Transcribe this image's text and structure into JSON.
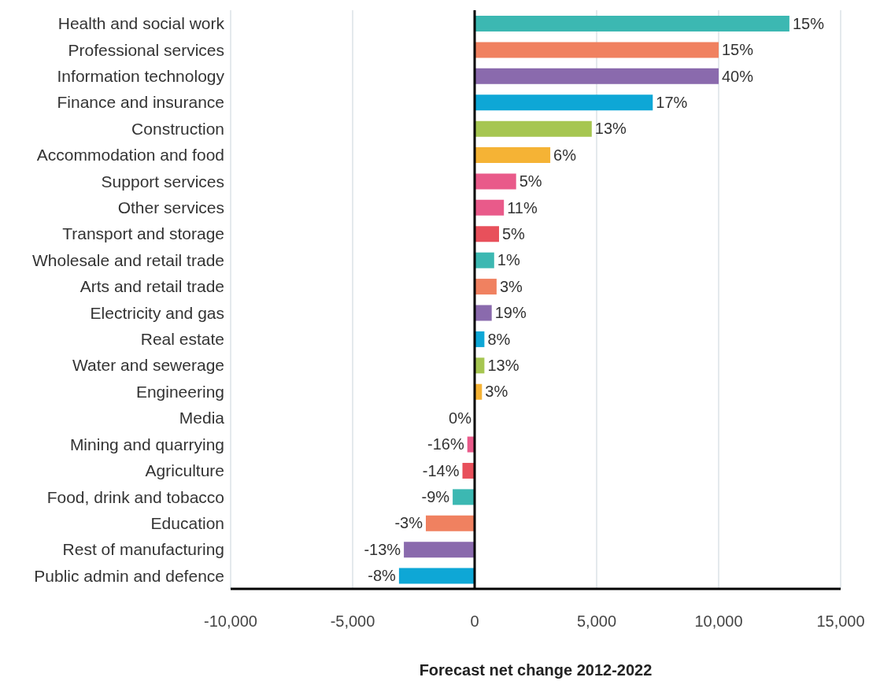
{
  "chart_data": {
    "type": "bar",
    "orientation": "horizontal",
    "xlabel": "Forecast net change 2012-2022",
    "categories": [
      "Health and social work",
      "Professional services",
      "Information technology",
      "Finance and insurance",
      "Construction",
      "Accommodation and food",
      "Support services",
      "Other services",
      "Transport and storage",
      "Wholesale and retail trade",
      "Arts and retail trade",
      "Electricity and gas",
      "Real estate",
      "Water and sewerage",
      "Engineering",
      "Media",
      "Mining and quarrying",
      "Agriculture",
      "Food, drink and tobacco",
      "Education",
      "Rest of manufacturing",
      "Public admin and defence"
    ],
    "values": [
      12900,
      10000,
      10000,
      7300,
      4800,
      3100,
      1700,
      1200,
      1000,
      800,
      900,
      700,
      400,
      400,
      300,
      0,
      -300,
      -500,
      -900,
      -2000,
      -2900,
      -3100
    ],
    "annotations": [
      {
        "text": "15%",
        "x": 12900,
        "y": "Health and social work"
      },
      {
        "text": "15%",
        "x": 10000,
        "y": "Professional services"
      },
      {
        "text": "40%",
        "x": 10000,
        "y": "Information technology"
      },
      {
        "text": "17%",
        "x": 7300,
        "y": "Finance and insurance"
      },
      {
        "text": "13%",
        "x": 4800,
        "y": "Construction"
      },
      {
        "text": "6%",
        "x": 3100,
        "y": "Accommodation and food"
      },
      {
        "text": "5%",
        "x": 1700,
        "y": "Support services"
      },
      {
        "text": "11%",
        "x": 1200,
        "y": "Other services"
      },
      {
        "text": "5%",
        "x": 1000,
        "y": "Transport and storage"
      },
      {
        "text": "1%",
        "x": 800,
        "y": "Wholesale and retail trade"
      },
      {
        "text": "3%",
        "x": 900,
        "y": "Arts and retail trade"
      },
      {
        "text": "19%",
        "x": 700,
        "y": "Electricity and gas"
      },
      {
        "text": "8%",
        "x": 400,
        "y": "Real estate"
      },
      {
        "text": "13%",
        "x": 400,
        "y": "Water and sewerage"
      },
      {
        "text": "3%",
        "x": 300,
        "y": "Engineering"
      },
      {
        "text": "0%",
        "x": 0,
        "y": "Media"
      },
      {
        "text": "-16%",
        "x": -300,
        "y": "Mining and quarrying"
      },
      {
        "text": "-14%",
        "x": -500,
        "y": "Agriculture"
      },
      {
        "text": "-9%",
        "x": -900,
        "y": "Food, drink and tobacco"
      },
      {
        "text": "-3%",
        "x": -2000,
        "y": "Education"
      },
      {
        "text": "-13%",
        "x": -2900,
        "y": "Rest of manufacturing"
      },
      {
        "text": "-8%",
        "x": -3100,
        "y": "Public admin and defence"
      }
    ],
    "colors": [
      "#3cb8b2",
      "#f08160",
      "#8a6aad",
      "#0ea7d6",
      "#a6c651",
      "#f5b335",
      "#e95a8a",
      "#e95a8a",
      "#e8505b",
      "#3cb8b2",
      "#f08160",
      "#8a6aad",
      "#0ea7d6",
      "#a6c651",
      "#f5b335",
      "#e95a8a",
      "#e95a8a",
      "#e8505b",
      "#3cb8b2",
      "#f08160",
      "#8a6aad",
      "#0ea7d6"
    ],
    "xlim": [
      -10000,
      15000
    ],
    "xticks": [
      {
        "value": -10000,
        "label": "-10,000"
      },
      {
        "value": -5000,
        "label": "-5,000"
      },
      0,
      {
        "value": 5000,
        "label": "5,000"
      },
      {
        "value": 10000,
        "label": "10,000"
      },
      {
        "value": 15000,
        "label": "15,000"
      }
    ],
    "grid": "x",
    "ref_lines": [
      {
        "axis": "x",
        "value": 0,
        "color": "#000000"
      }
    ]
  }
}
